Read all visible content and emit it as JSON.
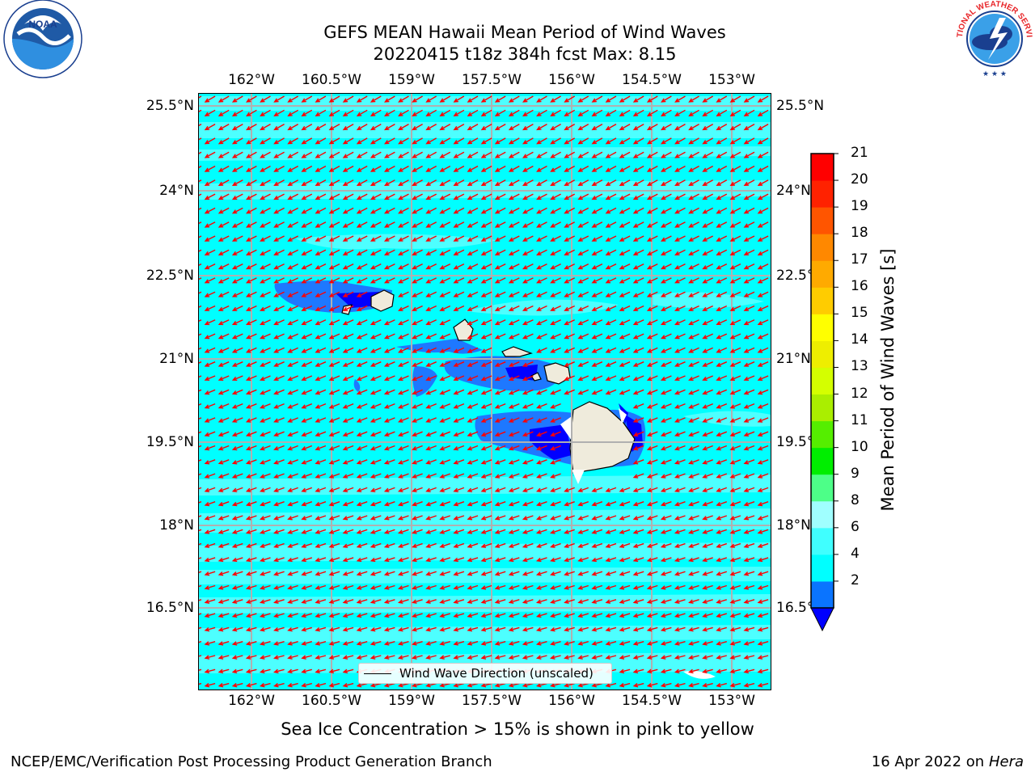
{
  "header": {
    "title_line1": "GEFS MEAN Hawaii Mean Period of Wind Waves",
    "title_line2": "20220415 t18z 384h fcst   Max: 8.15"
  },
  "logos": {
    "noaa": {
      "text": "NOAA",
      "ring_text": "NATIONAL OCEANIC AND ATMOSPHERIC ADMINISTRATION · U.S. DEPARTMENT OF COMMERCE"
    },
    "nws": {
      "ring_text": "NATIONAL WEATHER SERVICE"
    }
  },
  "map": {
    "lon_labels": [
      "162°W",
      "160.5°W",
      "159°W",
      "157.5°W",
      "156°W",
      "154.5°W",
      "153°W"
    ],
    "lat_labels": [
      "25.5°N",
      "24°N",
      "22.5°N",
      "21°N",
      "19.5°N",
      "18°N",
      "16.5°N"
    ],
    "ocean_color": "#00ffff",
    "light_band_color": "#4dffff",
    "low_period_color": "#1e78ff",
    "lowest_period_color": "#0000ff",
    "land_color": "#efebdc",
    "arrow_color": "#ff0000",
    "legend_label": "Wind Wave Direction (unscaled)"
  },
  "colorbar": {
    "title": "Mean Period of Wind Waves [s]",
    "tick_labels": [
      "21",
      "20",
      "19",
      "18",
      "17",
      "16",
      "15",
      "14",
      "13",
      "12",
      "11",
      "10",
      "9",
      "8",
      "6",
      "4",
      "2"
    ],
    "colors_bottom_to_top": [
      "#0a74ff",
      "#00ffff",
      "#40ffff",
      "#a0ffff",
      "#4dff88",
      "#00ee00",
      "#55ee00",
      "#aaee00",
      "#d4ff00",
      "#eeee00",
      "#ffff00",
      "#ffcc00",
      "#ffaa00",
      "#ff8800",
      "#ff5500",
      "#ff2200",
      "#ff0000"
    ],
    "extend_color": "#0000ff"
  },
  "footer": {
    "note": "Sea Ice Concentration > 15% is shown in pink to yellow",
    "left": "NCEP/EMC/Verification Post Processing Product Generation Branch",
    "right_plain": "16 Apr 2022 on ",
    "right_italic": "Hera"
  }
}
